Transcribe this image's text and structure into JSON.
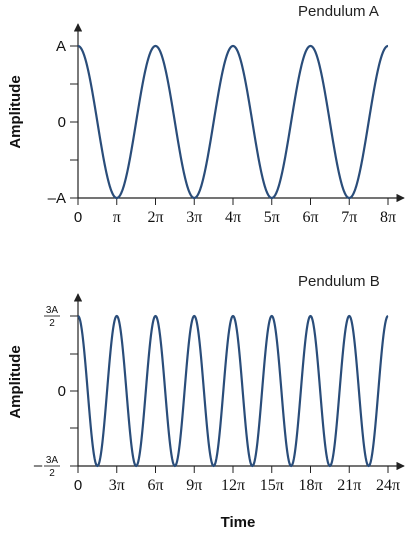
{
  "colors": {
    "curve": "#2a4d7a",
    "axis": "#222222"
  },
  "chart_data": [
    {
      "type": "line",
      "title": "Pendulum A",
      "ylabel": "Amplitude",
      "xlabel": "",
      "function": "A*cos(t)",
      "amplitude_label": "A",
      "x_range": [
        0,
        8
      ],
      "x_unit": "π",
      "y_range": [
        -1,
        1
      ],
      "x_ticks": [
        "0",
        "π",
        "2π",
        "3π",
        "4π",
        "5π",
        "6π",
        "7π",
        "8π"
      ],
      "y_ticks": [
        "–A",
        "0",
        "A"
      ],
      "series": [
        {
          "x": [
            0,
            1,
            2,
            3,
            4,
            5,
            6,
            7,
            8
          ],
          "y": [
            1,
            -1,
            1,
            -1,
            1,
            -1,
            1,
            -1,
            1
          ]
        }
      ]
    },
    {
      "type": "line",
      "title": "Pendulum B",
      "ylabel": "Amplitude",
      "xlabel": "Time",
      "function": "(3A/2)*cos(t/... )",
      "x_range": [
        0,
        24
      ],
      "x_unit": "π",
      "y_range": [
        -1.5,
        1.5
      ],
      "x_ticks": [
        "0",
        "3π",
        "6π",
        "9π",
        "12π",
        "15π",
        "18π",
        "21π",
        "24π"
      ],
      "y_ticks": [
        {
          "sign": "–",
          "num": "3A",
          "den": "2"
        },
        "0",
        {
          "sign": "",
          "num": "3A",
          "den": "2"
        }
      ],
      "series": [
        {
          "x": [
            0,
            1.5,
            3,
            4.5,
            6,
            7.5,
            9,
            10.5,
            12,
            13.5,
            15,
            16.5,
            18,
            19.5,
            21,
            22.5,
            24
          ],
          "y": [
            1.5,
            -1.5,
            1.5,
            -1.5,
            1.5,
            -1.5,
            1.5,
            -1.5,
            1.5,
            -1.5,
            1.5,
            -1.5,
            1.5,
            -1.5,
            1.5,
            -1.5,
            1.5
          ]
        }
      ]
    }
  ]
}
